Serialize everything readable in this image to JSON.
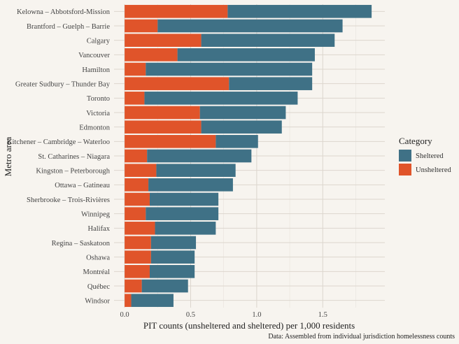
{
  "chart_data": {
    "type": "bar",
    "orientation": "horizontal",
    "stacked": true,
    "xlabel": "PIT counts (unsheltered and sheltered) per 1,000 residents",
    "ylabel": "Metro area",
    "xlim": [
      -0.08,
      1.97
    ],
    "xticks": [
      {
        "value": 0,
        "label": "0.0"
      },
      {
        "value": 0.5,
        "label": "0.5"
      },
      {
        "value": 1.0,
        "label": "1.0"
      },
      {
        "value": 1.5,
        "label": "1.5"
      }
    ],
    "grid": true,
    "legend": {
      "title": "Category",
      "placement": "right",
      "entries": [
        {
          "name": "Sheltered",
          "color": "#3f7186"
        },
        {
          "name": "Unsheltered",
          "color": "#e0542a"
        }
      ]
    },
    "categories": [
      "Kelowna – Abbotsford-Mission",
      "Brantford – Guelph – Barrie",
      "Calgary",
      "Vancouver",
      "Hamilton",
      "Greater Sudbury – Thunder Bay",
      "Toronto",
      "Victoria",
      "Edmonton",
      "Kitchener – Cambridge – Waterloo",
      "St. Catharines – Niagara",
      "Kingston – Peterborough",
      "Ottawa – Gatineau",
      "Sherbrooke – Trois-Rivières",
      "Winnipeg",
      "Halifax",
      "Regina – Saskatoon",
      "Oshawa",
      "Montréal",
      "Québec",
      "Windsor"
    ],
    "series": [
      {
        "name": "Unsheltered",
        "color": "#e0542a",
        "values": [
          0.78,
          0.25,
          0.58,
          0.4,
          0.16,
          0.79,
          0.15,
          0.57,
          0.58,
          0.69,
          0.17,
          0.24,
          0.18,
          0.19,
          0.16,
          0.23,
          0.2,
          0.2,
          0.19,
          0.13,
          0.05
        ]
      },
      {
        "name": "Sheltered",
        "color": "#3f7186",
        "values": [
          1.09,
          1.4,
          1.01,
          1.04,
          1.26,
          0.63,
          1.16,
          0.65,
          0.61,
          0.32,
          0.79,
          0.6,
          0.64,
          0.52,
          0.55,
          0.46,
          0.34,
          0.33,
          0.34,
          0.35,
          0.32
        ]
      }
    ],
    "caption": "Data: Assembled from individual jurisdiction homelessness counts"
  }
}
